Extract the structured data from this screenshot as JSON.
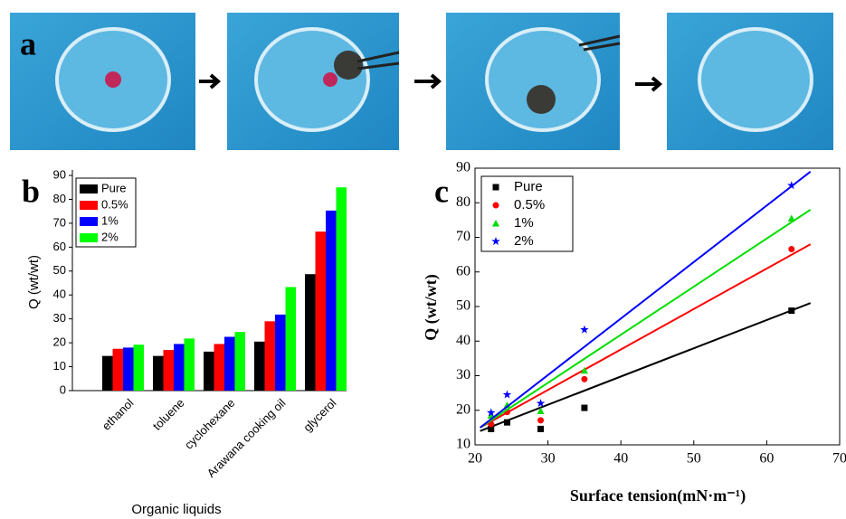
{
  "panel_labels": [
    "a",
    "b",
    "c"
  ],
  "chart_data": [
    {
      "type": "bar",
      "xlabel": "Organic liquids",
      "ylabel": "Q (wt/wt)",
      "categories": [
        "ethanol",
        "toluene",
        "cyclohexane",
        "Arawana cooking oil",
        "glycerol"
      ],
      "series": [
        {
          "name": "Pure",
          "color": "#000000",
          "values": [
            14.5,
            14.5,
            16.3,
            20.5,
            48.7
          ]
        },
        {
          "name": "0.5%",
          "color": "#ff0000",
          "values": [
            17.5,
            17,
            19.5,
            29,
            66.5
          ]
        },
        {
          "name": "1%",
          "color": "#0000ff",
          "values": [
            18,
            19.5,
            22.5,
            31.8,
            75.3
          ]
        },
        {
          "name": "2%",
          "color": "#00ff00",
          "values": [
            19.2,
            21.8,
            24.5,
            43.3,
            85
          ]
        }
      ],
      "ylim": [
        0,
        90
      ],
      "yticks": [
        0,
        10,
        20,
        30,
        40,
        50,
        60,
        70,
        80,
        90
      ],
      "legend": "upper left"
    },
    {
      "type": "scatter",
      "xlabel": "Surface tension(mN·m⁻¹)",
      "ylabel": "Q (wt/wt)",
      "x": [
        22.2,
        24.4,
        29,
        35,
        63.4
      ],
      "series": [
        {
          "name": "Pure",
          "color": "#000000",
          "marker": "square",
          "values": [
            14.6,
            16.5,
            14.6,
            20.7,
            48.8
          ],
          "fit_x": [
            20.7,
            66
          ],
          "fit_y": [
            14,
            51
          ]
        },
        {
          "name": "0.5%",
          "color": "#ff0000",
          "marker": "circle",
          "values": [
            16,
            19.5,
            17.1,
            29,
            66.6
          ],
          "fit_x": [
            20.7,
            66
          ],
          "fit_y": [
            15,
            68
          ]
        },
        {
          "name": "1%",
          "color": "#00dd00",
          "marker": "triangle",
          "values": [
            18.5,
            21.5,
            19.8,
            31.5,
            75.5
          ],
          "fit_x": [
            20.7,
            66
          ],
          "fit_y": [
            15,
            78
          ]
        },
        {
          "name": "2%",
          "color": "#0000ff",
          "marker": "star",
          "values": [
            19.3,
            24.5,
            22,
            43.3,
            85
          ],
          "fit_x": [
            20.7,
            66
          ],
          "fit_y": [
            15,
            89
          ]
        }
      ],
      "xlim": [
        20,
        70
      ],
      "xticks": [
        20,
        30,
        40,
        50,
        60,
        70
      ],
      "ylim": [
        10,
        90
      ],
      "yticks": [
        10,
        20,
        30,
        40,
        50,
        60,
        70,
        80,
        90
      ],
      "legend": "upper left"
    }
  ]
}
